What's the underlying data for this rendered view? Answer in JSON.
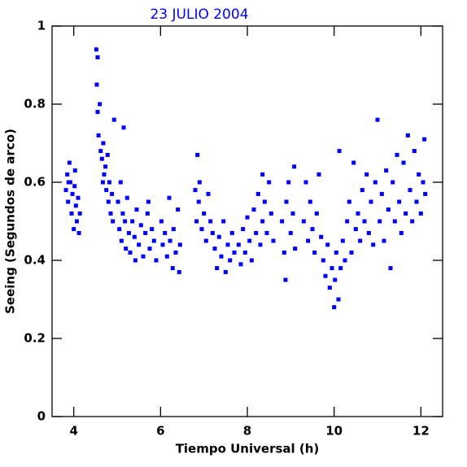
{
  "chart_data": {
    "type": "scatter",
    "title": "23 JULIO 2004",
    "x_label": "Tiempo Universal (h)",
    "y_label": "Seeing (Segundos de arco)",
    "color": "#0000ff",
    "xlim": [
      3.5,
      12.5
    ],
    "xticks": [
      4,
      6,
      8,
      10,
      12
    ],
    "ylim": [
      0,
      1
    ],
    "yticks": [
      0,
      0.2,
      0.4,
      0.6,
      0.8,
      1
    ],
    "x": [
      3.82,
      3.85,
      3.87,
      3.9,
      3.92,
      3.95,
      3.97,
      4.0,
      4.02,
      4.05,
      4.07,
      4.1,
      4.12,
      4.14,
      3.88,
      4.03,
      4.52,
      4.53,
      4.55,
      4.57,
      4.6,
      4.62,
      4.65,
      4.68,
      4.7,
      4.73,
      4.75,
      4.78,
      4.8,
      4.82,
      4.85,
      4.88,
      4.9,
      4.93,
      4.55,
      4.67,
      5.02,
      5.05,
      5.08,
      5.1,
      5.13,
      5.15,
      5.18,
      5.2,
      5.23,
      5.27,
      5.3,
      5.35,
      5.4,
      5.45,
      5.5,
      5.55,
      5.6,
      5.65,
      5.7,
      5.75,
      5.8,
      5.85,
      5.9,
      5.42,
      5.72,
      6.02,
      6.05,
      6.1,
      6.15,
      6.2,
      6.22,
      6.28,
      6.3,
      6.35,
      6.4,
      6.43,
      6.45,
      6.8,
      6.83,
      6.85,
      6.88,
      6.9,
      6.95,
      7.0,
      7.05,
      7.1,
      7.15,
      7.2,
      7.25,
      7.3,
      7.35,
      7.4,
      7.45,
      7.5,
      7.55,
      7.6,
      7.65,
      7.7,
      7.8,
      7.85,
      7.9,
      7.95,
      8.0,
      8.05,
      8.1,
      8.15,
      8.2,
      8.25,
      8.3,
      8.35,
      8.4,
      8.45,
      8.5,
      8.55,
      8.6,
      8.35,
      8.8,
      8.85,
      8.88,
      8.9,
      8.95,
      9.0,
      9.05,
      9.08,
      9.1,
      9.3,
      9.35,
      9.4,
      9.45,
      9.5,
      9.55,
      9.6,
      9.65,
      9.7,
      9.75,
      9.8,
      9.85,
      9.9,
      9.95,
      10.0,
      10.02,
      10.05,
      10.1,
      10.12,
      10.15,
      10.2,
      10.25,
      10.3,
      10.35,
      10.4,
      10.45,
      10.5,
      10.55,
      10.6,
      10.65,
      10.7,
      10.75,
      10.8,
      10.85,
      10.9,
      10.95,
      11.0,
      11.05,
      11.1,
      11.15,
      11.2,
      11.25,
      11.3,
      11.35,
      11.4,
      11.45,
      11.5,
      11.55,
      11.6,
      11.65,
      11.7,
      11.75,
      11.8,
      11.85,
      11.9,
      11.95,
      12.0,
      12.05,
      12.1,
      12.08
    ],
    "values": [
      0.58,
      0.62,
      0.55,
      0.65,
      0.6,
      0.52,
      0.57,
      0.48,
      0.59,
      0.54,
      0.5,
      0.56,
      0.47,
      0.52,
      0.6,
      0.63,
      0.94,
      0.85,
      0.78,
      0.72,
      0.8,
      0.68,
      0.66,
      0.7,
      0.62,
      0.64,
      0.58,
      0.67,
      0.55,
      0.6,
      0.52,
      0.57,
      0.5,
      0.76,
      0.92,
      0.6,
      0.55,
      0.48,
      0.6,
      0.45,
      0.52,
      0.74,
      0.5,
      0.43,
      0.56,
      0.47,
      0.42,
      0.5,
      0.46,
      0.53,
      0.44,
      0.49,
      0.41,
      0.47,
      0.52,
      0.43,
      0.48,
      0.45,
      0.4,
      0.4,
      0.55,
      0.5,
      0.44,
      0.47,
      0.41,
      0.56,
      0.45,
      0.38,
      0.48,
      0.42,
      0.53,
      0.37,
      0.44,
      0.58,
      0.5,
      0.67,
      0.55,
      0.6,
      0.48,
      0.52,
      0.45,
      0.57,
      0.5,
      0.47,
      0.43,
      0.38,
      0.46,
      0.41,
      0.5,
      0.37,
      0.44,
      0.4,
      0.47,
      0.42,
      0.44,
      0.39,
      0.48,
      0.42,
      0.51,
      0.45,
      0.4,
      0.53,
      0.47,
      0.57,
      0.44,
      0.5,
      0.55,
      0.47,
      0.6,
      0.52,
      0.45,
      0.62,
      0.5,
      0.42,
      0.35,
      0.55,
      0.6,
      0.47,
      0.52,
      0.64,
      0.43,
      0.5,
      0.6,
      0.45,
      0.55,
      0.48,
      0.42,
      0.52,
      0.62,
      0.46,
      0.4,
      0.36,
      0.44,
      0.33,
      0.38,
      0.28,
      0.35,
      0.42,
      0.3,
      0.68,
      0.38,
      0.45,
      0.4,
      0.5,
      0.55,
      0.42,
      0.65,
      0.48,
      0.52,
      0.45,
      0.58,
      0.5,
      0.62,
      0.47,
      0.55,
      0.44,
      0.6,
      0.76,
      0.5,
      0.57,
      0.45,
      0.63,
      0.53,
      0.38,
      0.6,
      0.5,
      0.67,
      0.55,
      0.47,
      0.65,
      0.52,
      0.72,
      0.58,
      0.5,
      0.68,
      0.55,
      0.62,
      0.52,
      0.6,
      0.57,
      0.71
    ]
  }
}
